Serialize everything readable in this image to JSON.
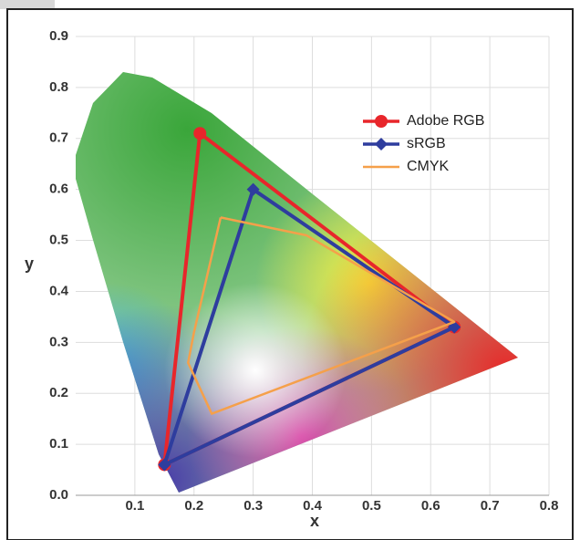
{
  "chart_data": {
    "type": "line",
    "xlabel": "x",
    "ylabel": "y",
    "xlim": [
      0,
      0.8
    ],
    "ylim": [
      0,
      0.9
    ],
    "xticks": [
      0.1,
      0.2,
      0.3,
      0.4,
      0.5,
      0.6,
      0.7,
      0.8
    ],
    "yticks": [
      {
        "value": 0,
        "label": "0.0"
      },
      0.1,
      0.2,
      0.3,
      0.4,
      0.5,
      0.6,
      0.7,
      0.8,
      0.9
    ],
    "grid": true,
    "legend": "upper right",
    "series": [
      {
        "name": "Adobe RGB",
        "color": "#e8262b",
        "marker": "circle",
        "x": [
          0.64,
          0.21,
          0.15,
          0.64
        ],
        "y": [
          0.33,
          0.71,
          0.06,
          0.33
        ]
      },
      {
        "name": "sRGB",
        "color": "#2e3d9e",
        "marker": "diamond",
        "x": [
          0.64,
          0.3,
          0.15,
          0.64
        ],
        "y": [
          0.33,
          0.6,
          0.06,
          0.33
        ]
      },
      {
        "name": "CMYK",
        "color": "#f5a04a",
        "x": [
          0.245,
          0.39,
          0.64,
          0.23,
          0.19,
          0.2,
          0.245
        ],
        "y": [
          0.545,
          0.51,
          0.34,
          0.16,
          0.26,
          0.32,
          0.545
        ]
      }
    ]
  }
}
